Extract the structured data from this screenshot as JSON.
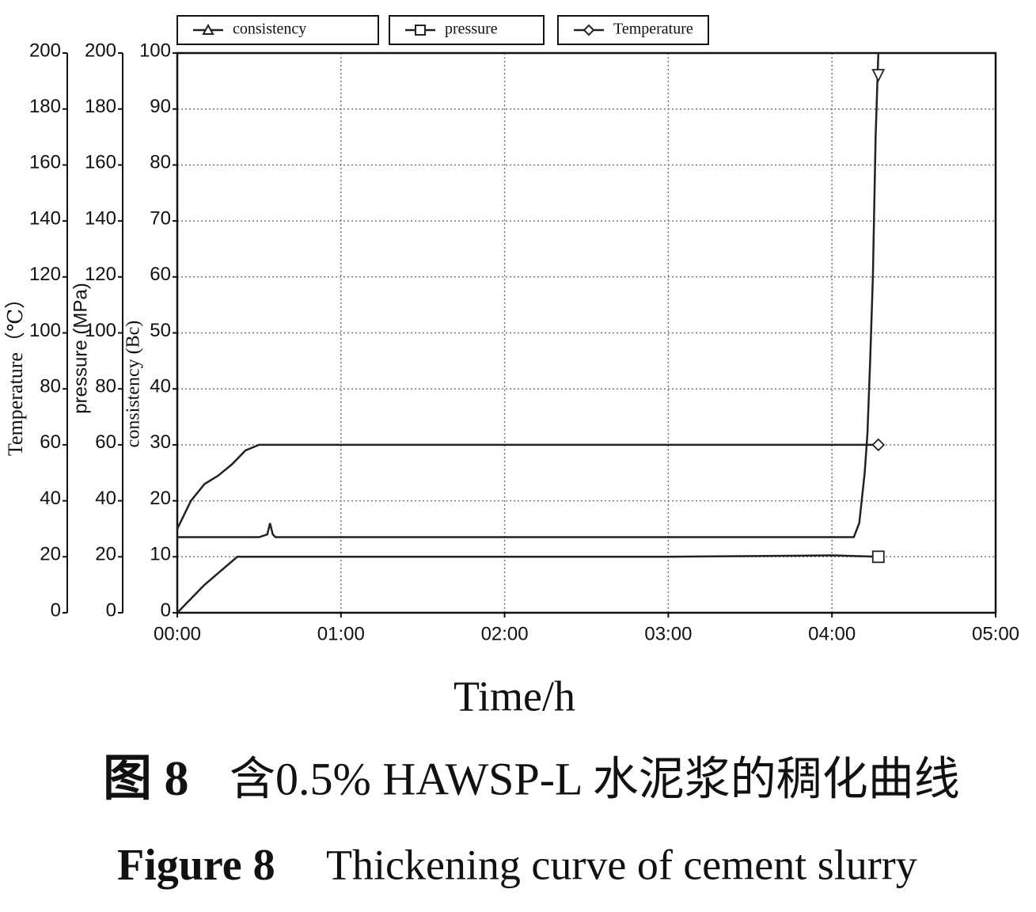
{
  "chart_data": {
    "type": "line",
    "xlabel": "Time/h",
    "ylabel": "consistency (Bc)",
    "y2label": "pressure (MPa)",
    "y3label": "Temperature（℃）",
    "xlim": [
      0,
      300
    ],
    "xticks": [
      {
        "value": 0,
        "label": "00:00"
      },
      {
        "value": 60,
        "label": "01:00"
      },
      {
        "value": 120,
        "label": "02:00"
      },
      {
        "value": 180,
        "label": "03:00"
      },
      {
        "value": 240,
        "label": "04:00"
      },
      {
        "value": 300,
        "label": "05:00"
      }
    ],
    "ylim": [
      0,
      100
    ],
    "yticks": [
      0,
      10,
      20,
      30,
      40,
      50,
      60,
      70,
      80,
      90,
      100
    ],
    "y2lim": [
      0,
      200
    ],
    "y2ticks": [
      0,
      20,
      40,
      60,
      80,
      100,
      120,
      140,
      160,
      180,
      200
    ],
    "y3lim": [
      0,
      200
    ],
    "y3ticks": [
      0,
      20,
      40,
      60,
      80,
      100,
      120,
      140,
      160,
      180,
      200
    ],
    "grid": true,
    "series": [
      {
        "name": "consistency",
        "color": "#222222",
        "marker": "triangle",
        "x": [
          0,
          30,
          33,
          34,
          35,
          36,
          60,
          120,
          180,
          240,
          248,
          250,
          252,
          253,
          254,
          255,
          256,
          257
        ],
        "values": [
          13.5,
          13.5,
          14,
          16,
          14,
          13.5,
          13.5,
          13.5,
          13.5,
          13.5,
          13.5,
          16,
          25,
          32,
          45,
          60,
          85,
          100
        ]
      },
      {
        "name": "pressure",
        "color": "#222222",
        "marker": "square",
        "axis": "y2",
        "x": [
          0,
          10,
          22,
          60,
          120,
          180,
          240,
          257
        ],
        "values": [
          0,
          10,
          20,
          20,
          20,
          20,
          20.5,
          20
        ]
      },
      {
        "name": "Temperature",
        "color": "#222222",
        "marker": "diamond",
        "axis": "y3",
        "x": [
          0,
          5,
          10,
          15,
          20,
          25,
          30,
          60,
          120,
          180,
          240,
          257
        ],
        "values": [
          30,
          40,
          46,
          49,
          53,
          58,
          60,
          60,
          60,
          60,
          60,
          60
        ]
      }
    ]
  },
  "caption": {
    "zh_label": "图 8",
    "zh_text": "含0.5% HAWSP-L 水泥浆的稠化曲线",
    "en_label": "Figure 8",
    "en_text": "Thickening curve of cement slurry"
  }
}
